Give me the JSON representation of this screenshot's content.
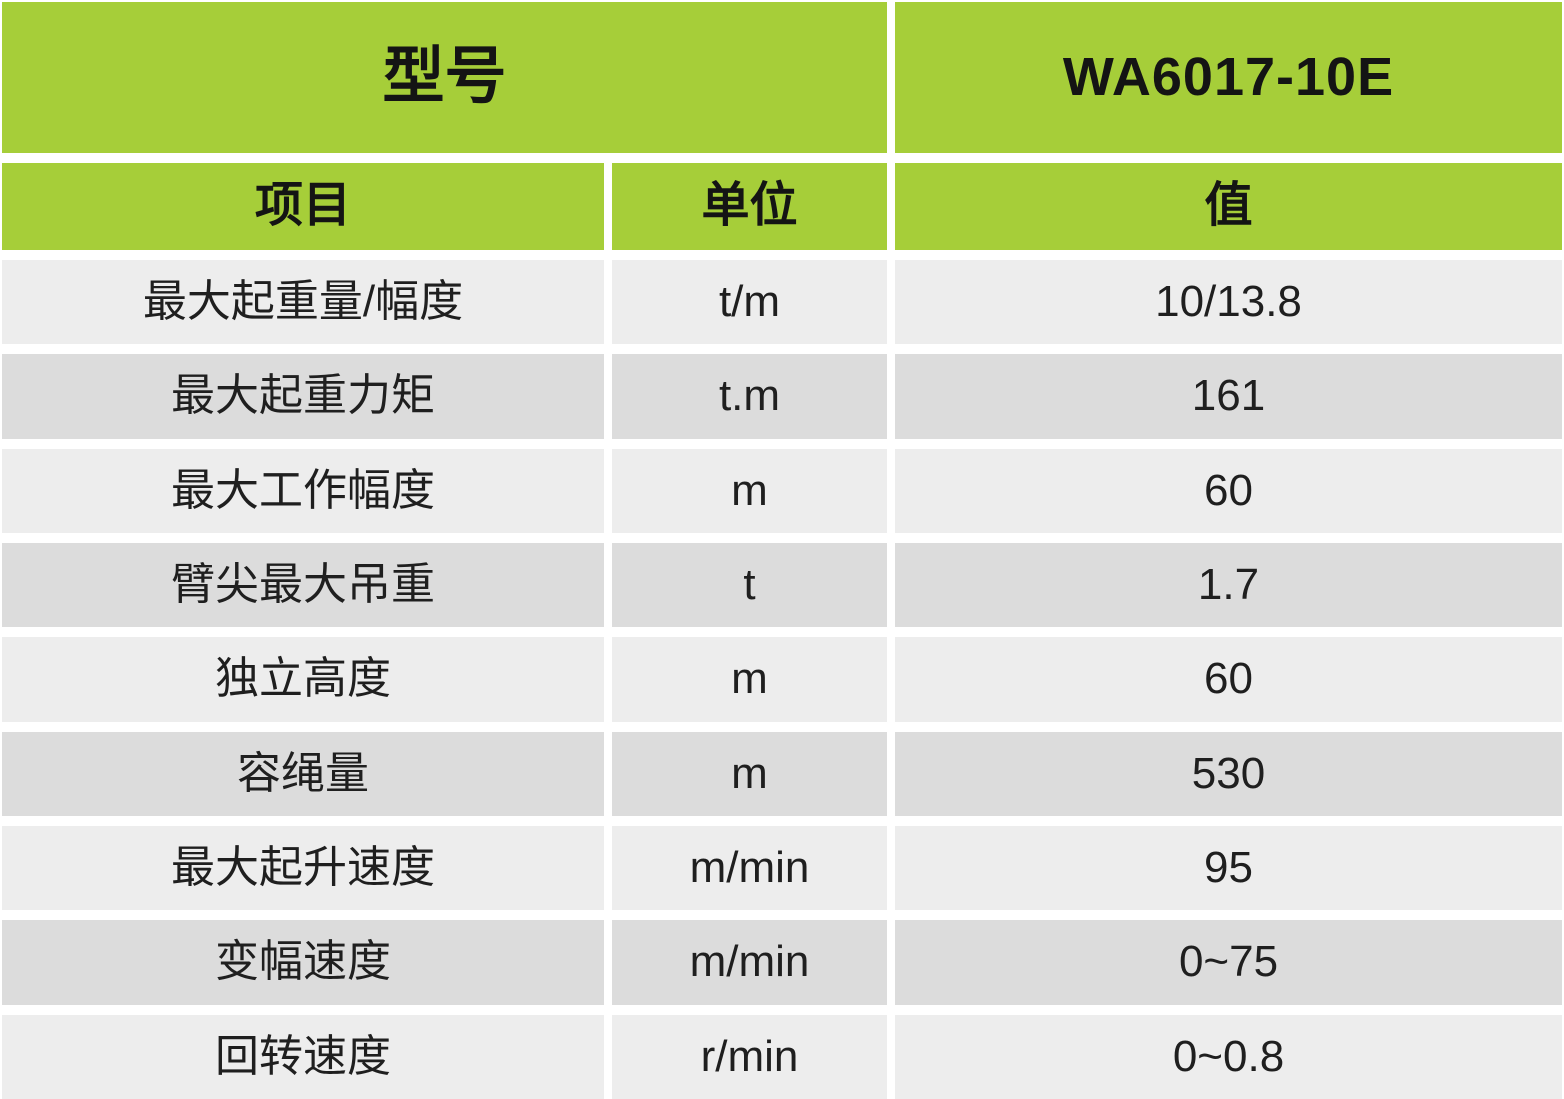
{
  "chart_data": {
    "type": "table",
    "model_header": "型号",
    "model_value": "WA6017-10E",
    "column_headers": {
      "item": "项目",
      "unit": "单位",
      "value": "值"
    },
    "rows": [
      {
        "item": "最大起重量/幅度",
        "unit": "t/m",
        "value": "10/13.8"
      },
      {
        "item": "最大起重力矩",
        "unit": "t.m",
        "value": "161"
      },
      {
        "item": "最大工作幅度",
        "unit": "m",
        "value": "60"
      },
      {
        "item": "臂尖最大吊重",
        "unit": "t",
        "value": "1.7"
      },
      {
        "item": "独立高度",
        "unit": "m",
        "value": "60"
      },
      {
        "item": "容绳量",
        "unit": "m",
        "value": "530"
      },
      {
        "item": "最大起升速度",
        "unit": "m/min",
        "value": "95"
      },
      {
        "item": "变幅速度",
        "unit": "m/min",
        "value": "0~75"
      },
      {
        "item": "回转速度",
        "unit": "r/min",
        "value": "0~0.8"
      }
    ],
    "colors": {
      "green": "#a6ce39",
      "light": "#ededed",
      "dark": "#dcdcdc",
      "text": "#1f1f1f",
      "gap": "#ffffff"
    },
    "layout": {
      "legend": "none",
      "grid_gaps": "white gutters between all cells",
      "row_striping": "light/dark alternating"
    }
  }
}
